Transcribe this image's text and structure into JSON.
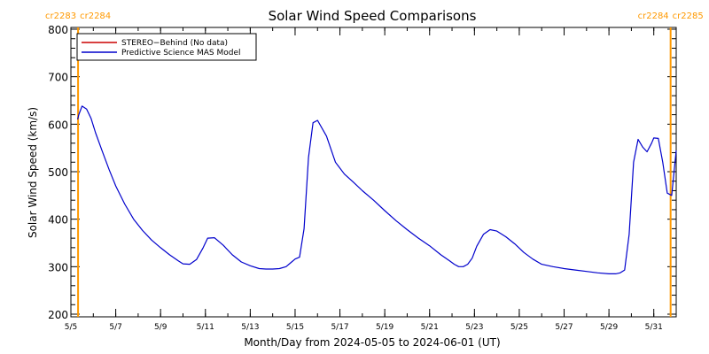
{
  "chart_data": {
    "type": "line",
    "title": "Solar Wind Speed Comparisons",
    "xlabel": "Month/Day from 2024-05-05 to 2024-06-01 (UT)",
    "ylabel": "Solar Wind Speed (km/s)",
    "ylim": [
      200,
      800
    ],
    "yticks": [
      200,
      300,
      400,
      500,
      600,
      700,
      800
    ],
    "xlim": [
      0,
      27
    ],
    "xticks": [
      {
        "x": 0,
        "label": "5/5"
      },
      {
        "x": 2,
        "label": "5/7"
      },
      {
        "x": 4,
        "label": "5/9"
      },
      {
        "x": 6,
        "label": "5/11"
      },
      {
        "x": 8,
        "label": "5/13"
      },
      {
        "x": 10,
        "label": "5/15"
      },
      {
        "x": 12,
        "label": "5/17"
      },
      {
        "x": 14,
        "label": "5/19"
      },
      {
        "x": 16,
        "label": "5/21"
      },
      {
        "x": 18,
        "label": "5/23"
      },
      {
        "x": 20,
        "label": "5/25"
      },
      {
        "x": 22,
        "label": "5/27"
      },
      {
        "x": 24,
        "label": "5/29"
      },
      {
        "x": 26,
        "label": "5/31"
      }
    ],
    "legend_position": "top-left",
    "carrington_markers": [
      {
        "x": 0.32,
        "left_label": "cr2283",
        "right_label": "cr2284",
        "color": "#ff9900"
      },
      {
        "x": 26.75,
        "left_label": "cr2284",
        "right_label": "cr2285",
        "color": "#ff9900"
      }
    ],
    "series": [
      {
        "name": "STEREO−Behind (No data)",
        "color": "#cc0000",
        "x": [],
        "y": []
      },
      {
        "name": "Predictive Science MAS Model",
        "color": "#0000cc",
        "x": [
          0.3,
          0.35,
          0.5,
          0.7,
          0.9,
          1.1,
          1.4,
          1.7,
          2.0,
          2.4,
          2.8,
          3.2,
          3.6,
          4.0,
          4.4,
          4.8,
          5.0,
          5.3,
          5.6,
          5.9,
          6.1,
          6.4,
          6.8,
          7.2,
          7.6,
          8.0,
          8.4,
          8.7,
          9.0,
          9.3,
          9.6,
          9.8,
          10.0,
          10.2,
          10.4,
          10.6,
          10.8,
          11.0,
          11.4,
          11.8,
          12.2,
          12.6,
          13.0,
          13.5,
          14.0,
          14.5,
          15.0,
          15.5,
          16.0,
          16.5,
          16.9,
          17.1,
          17.3,
          17.5,
          17.7,
          17.9,
          18.1,
          18.4,
          18.7,
          19.0,
          19.4,
          19.8,
          20.2,
          20.6,
          21.0,
          21.5,
          22.0,
          22.5,
          23.0,
          23.5,
          24.0,
          24.3,
          24.5,
          24.7,
          24.9,
          25.1,
          25.3,
          25.5,
          25.7,
          25.9,
          26.0,
          26.2,
          26.4,
          26.6,
          26.8,
          27.0
        ],
        "y": [
          610,
          620,
          638,
          632,
          612,
          582,
          543,
          505,
          470,
          432,
          400,
          376,
          356,
          340,
          325,
          312,
          306,
          305,
          315,
          340,
          360,
          361,
          345,
          325,
          310,
          302,
          296,
          295,
          295,
          296,
          300,
          308,
          316,
          320,
          380,
          530,
          603,
          608,
          575,
          520,
          495,
          478,
          460,
          440,
          418,
          397,
          378,
          360,
          344,
          325,
          312,
          305,
          300,
          300,
          305,
          318,
          343,
          368,
          378,
          375,
          363,
          348,
          330,
          316,
          305,
          300,
          296,
          293,
          290,
          287,
          285,
          285,
          287,
          293,
          368,
          520,
          568,
          552,
          542,
          560,
          571,
          570,
          520,
          455,
          450,
          545
        ]
      }
    ]
  }
}
